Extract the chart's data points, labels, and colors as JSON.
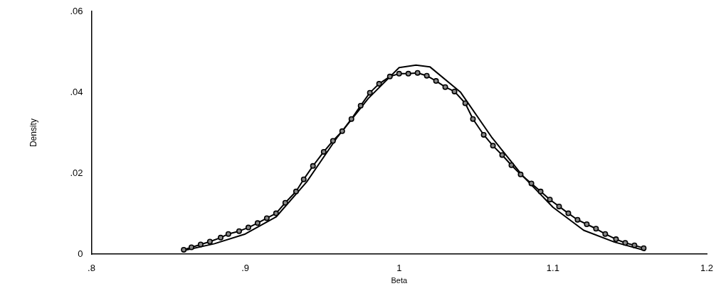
{
  "chart_data": {
    "type": "line",
    "xlabel": "Beta",
    "ylabel": "Density",
    "xlim": [
      0.8,
      1.2
    ],
    "ylim": [
      0,
      0.06
    ],
    "xticks": [
      {
        "value": 0.8,
        "label": ".8"
      },
      {
        "value": 0.9,
        "label": ".9"
      },
      1,
      {
        "value": 1.1,
        "label": "1.1"
      },
      {
        "value": 1.2,
        "label": "1.2"
      }
    ],
    "yticks": [
      0,
      {
        "value": 0.02,
        "label": ".02"
      },
      {
        "value": 0.04,
        "label": ".04"
      },
      {
        "value": 0.06,
        "label": ".06"
      }
    ],
    "grid": false,
    "legend": false,
    "series": [
      {
        "color": "#000000",
        "marker": "circle",
        "x": [
          0.86,
          0.865,
          0.871,
          0.877,
          0.884,
          0.889,
          0.896,
          0.902,
          0.908,
          0.914,
          0.92,
          0.926,
          0.933,
          0.938,
          0.944,
          0.951,
          0.957,
          0.963,
          0.969,
          0.975,
          0.981,
          0.987,
          0.994,
          1.0,
          1.006,
          1.012,
          1.018,
          1.024,
          1.03,
          1.036,
          1.043,
          1.048,
          1.055,
          1.061,
          1.067,
          1.073,
          1.079,
          1.086,
          1.092,
          1.098,
          1.104,
          1.11,
          1.116,
          1.122,
          1.128,
          1.134,
          1.141,
          1.147,
          1.153,
          1.159
        ],
        "values": [
          0.0011,
          0.0017,
          0.0024,
          0.0031,
          0.0041,
          0.005,
          0.0057,
          0.0066,
          0.0077,
          0.0089,
          0.0101,
          0.0127,
          0.0155,
          0.0185,
          0.0218,
          0.0253,
          0.028,
          0.0304,
          0.0334,
          0.0367,
          0.0399,
          0.0421,
          0.0439,
          0.0446,
          0.0446,
          0.0448,
          0.0441,
          0.0428,
          0.0413,
          0.0402,
          0.0373,
          0.0334,
          0.0295,
          0.0268,
          0.0245,
          0.022,
          0.0197,
          0.0175,
          0.0155,
          0.0135,
          0.0118,
          0.0101,
          0.0085,
          0.0074,
          0.0063,
          0.005,
          0.0037,
          0.0028,
          0.0022,
          0.0015
        ]
      },
      {
        "color": "#000000",
        "marker": "none",
        "x": [
          0.86,
          0.88,
          0.9,
          0.92,
          0.94,
          0.96,
          0.98,
          1.0,
          1.011,
          1.02,
          1.04,
          1.06,
          1.08,
          1.1,
          1.12,
          1.14,
          1.16
        ],
        "values": [
          0.0009,
          0.0026,
          0.005,
          0.0092,
          0.0179,
          0.029,
          0.0385,
          0.0461,
          0.0467,
          0.0463,
          0.04,
          0.029,
          0.0195,
          0.0116,
          0.0059,
          0.003,
          0.0009
        ]
      }
    ]
  }
}
